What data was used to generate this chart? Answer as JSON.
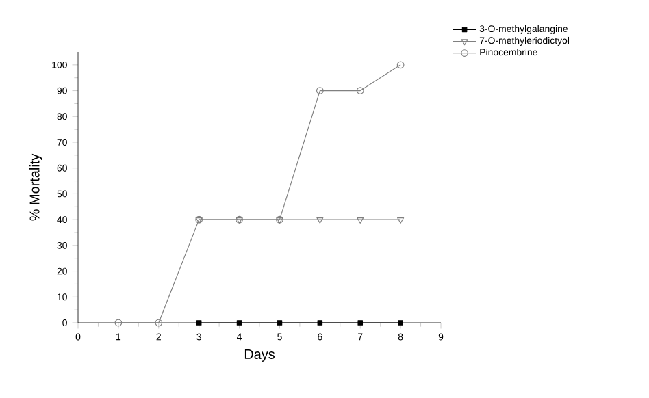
{
  "chart_data": {
    "type": "line",
    "xlabel": "Days",
    "ylabel": "% Mortality",
    "x": [
      1,
      2,
      3,
      4,
      5,
      6,
      7,
      8
    ],
    "series": [
      {
        "name": "3-O-methylgalangine",
        "color": "#000000",
        "marker": "square",
        "values": [
          null,
          null,
          0,
          0,
          0,
          0,
          0,
          0
        ]
      },
      {
        "name": "7-O-methyleriodictyol",
        "color": "#808080",
        "marker": "triangle",
        "values": [
          null,
          null,
          40,
          40,
          40,
          40,
          40,
          40
        ]
      },
      {
        "name": "Pinocembrine",
        "color": "#808080",
        "marker": "circle",
        "values": [
          0,
          0,
          40,
          40,
          40,
          90,
          90,
          100
        ]
      }
    ],
    "xlim": [
      0,
      9
    ],
    "xticks": [
      0,
      1,
      2,
      3,
      4,
      5,
      6,
      7,
      8,
      9
    ],
    "ylim": [
      0,
      105
    ],
    "yticks": [
      0,
      10,
      20,
      30,
      40,
      50,
      60,
      70,
      80,
      90,
      100
    ],
    "grid": false,
    "legend": "top right",
    "line_style": "solid"
  }
}
